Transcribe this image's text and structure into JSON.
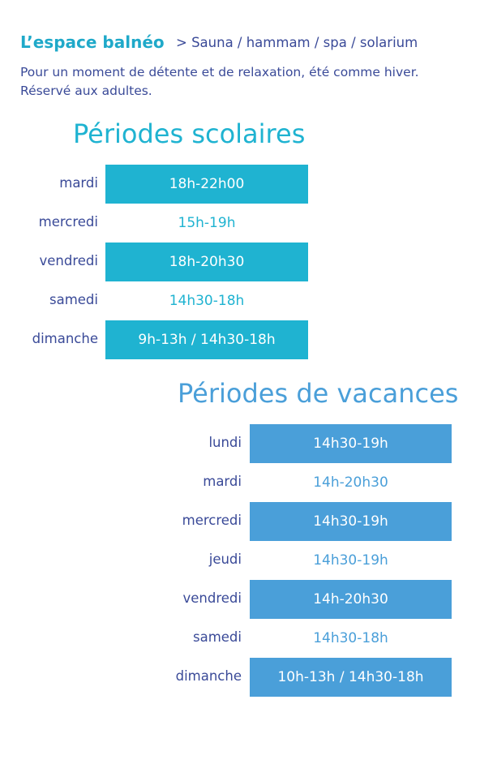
{
  "header": {
    "title": "L’espace balnéo",
    "subtitle": "> Sauna / hammam / spa / solarium"
  },
  "intro": [
    "Pour un moment de détente et de relaxation, été comme hiver.",
    "Réservé aux adultes."
  ],
  "sections": [
    {
      "title": "Périodes scolaires",
      "rows": [
        {
          "day": "mardi",
          "hours": "18h-22h00"
        },
        {
          "day": "mercredi",
          "hours": "15h-19h"
        },
        {
          "day": "vendredi",
          "hours": "18h-20h30"
        },
        {
          "day": "samedi",
          "hours": "14h30-18h"
        },
        {
          "day": "dimanche",
          "hours": "9h-13h / 14h30-18h"
        }
      ]
    },
    {
      "title": "Périodes de vacances",
      "rows": [
        {
          "day": "lundi",
          "hours": "14h30-19h"
        },
        {
          "day": "mardi",
          "hours": "14h-20h30"
        },
        {
          "day": "mercredi",
          "hours": "14h30-19h"
        },
        {
          "day": "jeudi",
          "hours": "14h30-19h"
        },
        {
          "day": "vendredi",
          "hours": "14h-20h30"
        },
        {
          "day": "samedi",
          "hours": "14h30-18h"
        },
        {
          "day": "dimanche",
          "hours": "10h-13h / 14h30-18h"
        }
      ]
    }
  ]
}
